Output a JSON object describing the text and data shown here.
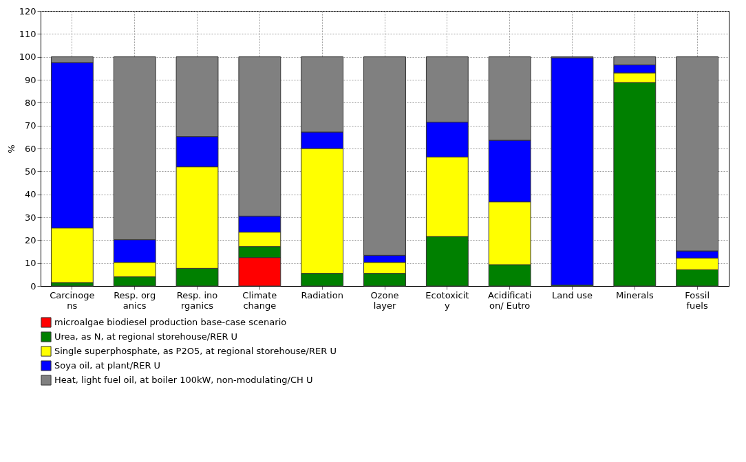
{
  "chart_data": {
    "type": "bar",
    "stacked": true,
    "ylabel": "%",
    "categories": [
      "Carcinoge\nns",
      "Resp. org\nanics",
      "Resp. ino\nrganics",
      "Climate\nchange",
      "Radiation",
      "Ozone\nlayer",
      "Ecotoxicit\ny",
      "Acidificati\non/ Eutro",
      "Land use",
      "Minerals",
      "Fossil\nfuels"
    ],
    "series": [
      {
        "name": "microalgae biodiesel production base-case scenario",
        "color": "#ff0000",
        "values": [
          null,
          null,
          null,
          12.4,
          null,
          null,
          null,
          null,
          null,
          null,
          null
        ]
      },
      {
        "name": "Urea, as N, at regional storehouse/RER U",
        "color": "#008000",
        "values": [
          1.5,
          4,
          7.7,
          4.8,
          5.5,
          5.5,
          21.6,
          9.3,
          0.4,
          88.8,
          7.1
        ]
      },
      {
        "name": "Single superphosphate, as P2O5, at regional storehouse/RER U",
        "color": "#ffff00",
        "values": [
          23.8,
          6.3,
          44.3,
          6.3,
          54.5,
          4.8,
          34.7,
          27.4,
          null,
          4.2,
          5.1
        ]
      },
      {
        "name": "Soya oil, at plant/RER U",
        "color": "#0000ff",
        "values": [
          72.2,
          9.9,
          13.2,
          7,
          7.2,
          3.1,
          15.2,
          26.9,
          99.2,
          3.5,
          3.1
        ]
      },
      {
        "name": "Heat, light fuel oil, at boiler 100kW, non-modulating/CH U",
        "color": "#808080",
        "values": [
          2.5,
          79.8,
          34.8,
          69.5,
          32.8,
          86.6,
          28.5,
          36.4,
          0.4,
          3.5,
          84.7
        ]
      }
    ],
    "ylim": [
      0,
      120
    ],
    "yticks": [
      0,
      10,
      20,
      30,
      40,
      50,
      60,
      70,
      80,
      90,
      100,
      110,
      120
    ],
    "grid": true,
    "legend": "bottom"
  }
}
